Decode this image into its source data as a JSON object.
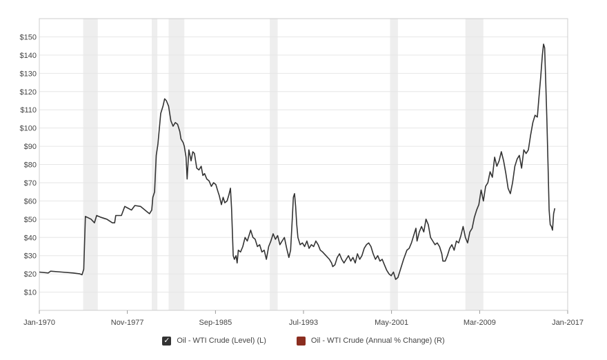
{
  "chart_data": {
    "type": "line",
    "y_ticks": [
      {
        "value": 10,
        "label": "$10"
      },
      {
        "value": 20,
        "label": "$20"
      },
      {
        "value": 30,
        "label": "$30"
      },
      {
        "value": 40,
        "label": "$40"
      },
      {
        "value": 50,
        "label": "$50"
      },
      {
        "value": 60,
        "label": "$60"
      },
      {
        "value": 70,
        "label": "$70"
      },
      {
        "value": 80,
        "label": "$80"
      },
      {
        "value": 90,
        "label": "$90"
      },
      {
        "value": 100,
        "label": "$100"
      },
      {
        "value": 110,
        "label": "$110"
      },
      {
        "value": 120,
        "label": "$120"
      },
      {
        "value": 130,
        "label": "$130"
      },
      {
        "value": 140,
        "label": "$140"
      },
      {
        "value": 150,
        "label": "$150"
      }
    ],
    "x_ticks": [
      {
        "value": 1970.0,
        "label": "Jan-1970"
      },
      {
        "value": 1977.83,
        "label": "Nov-1977"
      },
      {
        "value": 1985.67,
        "label": "Sep-1985"
      },
      {
        "value": 1993.5,
        "label": "Jul-1993"
      },
      {
        "value": 2001.33,
        "label": "May-2001"
      },
      {
        "value": 2009.17,
        "label": "Mar-2009"
      },
      {
        "value": 2017.0,
        "label": "Jan-2017"
      }
    ],
    "xlim": [
      1970.0,
      2017.0
    ],
    "ylim": [
      0,
      160
    ],
    "grid": "horizontal",
    "legend_position": "bottom-center",
    "recessions": [
      [
        1973.9,
        1975.2
      ],
      [
        1980.0,
        1980.5
      ],
      [
        1981.5,
        1982.9
      ],
      [
        1990.5,
        1991.2
      ],
      [
        2001.2,
        2001.9
      ],
      [
        2007.9,
        2009.5
      ]
    ],
    "series": [
      {
        "name": "Oil - WTI Crude (Level) (L)",
        "color": "#333333",
        "visible": true,
        "points": [
          [
            1970.0,
            21
          ],
          [
            1970.8,
            20.5
          ],
          [
            1971.0,
            21.5
          ],
          [
            1972.0,
            21
          ],
          [
            1973.0,
            20.5
          ],
          [
            1973.6,
            20
          ],
          [
            1973.8,
            19.5
          ],
          [
            1973.95,
            22.5
          ],
          [
            1974.1,
            51.5
          ],
          [
            1974.6,
            50
          ],
          [
            1974.9,
            48
          ],
          [
            1975.1,
            52
          ],
          [
            1975.5,
            51
          ],
          [
            1976.0,
            50
          ],
          [
            1976.5,
            48
          ],
          [
            1976.7,
            48
          ],
          [
            1976.8,
            52
          ],
          [
            1977.3,
            52
          ],
          [
            1977.6,
            57
          ],
          [
            1977.9,
            56
          ],
          [
            1978.2,
            55
          ],
          [
            1978.5,
            57.5
          ],
          [
            1979.0,
            57
          ],
          [
            1979.4,
            55
          ],
          [
            1979.7,
            53.5
          ],
          [
            1979.8,
            53
          ],
          [
            1980.0,
            55
          ],
          [
            1980.1,
            62
          ],
          [
            1980.25,
            65
          ],
          [
            1980.4,
            85
          ],
          [
            1980.55,
            91
          ],
          [
            1980.8,
            108
          ],
          [
            1981.0,
            112
          ],
          [
            1981.15,
            116
          ],
          [
            1981.3,
            115
          ],
          [
            1981.5,
            112
          ],
          [
            1981.7,
            104
          ],
          [
            1981.9,
            101
          ],
          [
            1982.1,
            103
          ],
          [
            1982.3,
            102
          ],
          [
            1982.5,
            98
          ],
          [
            1982.6,
            94
          ],
          [
            1982.8,
            92
          ],
          [
            1982.9,
            90
          ],
          [
            1983.05,
            84
          ],
          [
            1983.15,
            72
          ],
          [
            1983.3,
            88
          ],
          [
            1983.4,
            85
          ],
          [
            1983.5,
            82
          ],
          [
            1983.65,
            87
          ],
          [
            1983.8,
            86
          ],
          [
            1984.0,
            78
          ],
          [
            1984.2,
            77
          ],
          [
            1984.4,
            79
          ],
          [
            1984.55,
            74
          ],
          [
            1984.7,
            75
          ],
          [
            1984.9,
            72
          ],
          [
            1985.1,
            71
          ],
          [
            1985.3,
            68
          ],
          [
            1985.5,
            70
          ],
          [
            1985.7,
            69
          ],
          [
            1985.9,
            65
          ],
          [
            1986.0,
            63
          ],
          [
            1986.2,
            58
          ],
          [
            1986.35,
            62
          ],
          [
            1986.5,
            59
          ],
          [
            1986.7,
            60
          ],
          [
            1986.85,
            63
          ],
          [
            1987.0,
            67
          ],
          [
            1987.1,
            56
          ],
          [
            1987.25,
            30
          ],
          [
            1987.35,
            28
          ],
          [
            1987.5,
            30
          ],
          [
            1987.6,
            26
          ],
          [
            1987.7,
            33
          ],
          [
            1987.9,
            32
          ],
          [
            1988.1,
            35
          ],
          [
            1988.3,
            40
          ],
          [
            1988.5,
            38
          ],
          [
            1988.7,
            42
          ],
          [
            1988.8,
            44
          ],
          [
            1989.0,
            40
          ],
          [
            1989.2,
            39
          ],
          [
            1989.4,
            35
          ],
          [
            1989.6,
            36
          ],
          [
            1989.8,
            32
          ],
          [
            1990.0,
            33
          ],
          [
            1990.2,
            28
          ],
          [
            1990.4,
            35
          ],
          [
            1990.6,
            38
          ],
          [
            1990.8,
            42
          ],
          [
            1991.0,
            39
          ],
          [
            1991.2,
            41
          ],
          [
            1991.4,
            36
          ],
          [
            1991.6,
            38
          ],
          [
            1991.8,
            40
          ],
          [
            1992.0,
            34
          ],
          [
            1992.2,
            29
          ],
          [
            1992.35,
            33
          ],
          [
            1992.5,
            50
          ],
          [
            1992.6,
            62
          ],
          [
            1992.7,
            64
          ],
          [
            1992.8,
            57
          ],
          [
            1992.9,
            47
          ],
          [
            1993.0,
            40
          ],
          [
            1993.2,
            36
          ],
          [
            1993.4,
            37
          ],
          [
            1993.6,
            35
          ],
          [
            1993.8,
            38
          ],
          [
            1994.0,
            34
          ],
          [
            1994.2,
            36
          ],
          [
            1994.4,
            35
          ],
          [
            1994.6,
            38
          ],
          [
            1994.8,
            36
          ],
          [
            1995.0,
            33
          ],
          [
            1995.2,
            32
          ],
          [
            1995.5,
            30
          ],
          [
            1995.8,
            28
          ],
          [
            1996.0,
            26
          ],
          [
            1996.1,
            24
          ],
          [
            1996.3,
            25
          ],
          [
            1996.5,
            29
          ],
          [
            1996.7,
            31
          ],
          [
            1996.9,
            28
          ],
          [
            1997.1,
            26
          ],
          [
            1997.3,
            28
          ],
          [
            1997.5,
            30
          ],
          [
            1997.7,
            27
          ],
          [
            1997.9,
            29
          ],
          [
            1998.1,
            26
          ],
          [
            1998.3,
            31
          ],
          [
            1998.5,
            28
          ],
          [
            1998.7,
            30
          ],
          [
            1998.9,
            34
          ],
          [
            1999.1,
            36
          ],
          [
            1999.3,
            37
          ],
          [
            1999.5,
            35
          ],
          [
            1999.7,
            31
          ],
          [
            1999.9,
            28
          ],
          [
            2000.1,
            30
          ],
          [
            2000.3,
            27
          ],
          [
            2000.5,
            28
          ],
          [
            2000.7,
            25
          ],
          [
            2000.9,
            22
          ],
          [
            2001.1,
            20
          ],
          [
            2001.3,
            19
          ],
          [
            2001.5,
            21
          ],
          [
            2001.7,
            17
          ],
          [
            2001.9,
            18
          ],
          [
            2002.1,
            22
          ],
          [
            2002.4,
            28
          ],
          [
            2002.7,
            33
          ],
          [
            2002.9,
            34
          ],
          [
            2003.1,
            37
          ],
          [
            2003.3,
            41
          ],
          [
            2003.5,
            45
          ],
          [
            2003.6,
            38
          ],
          [
            2003.8,
            43
          ],
          [
            2004.0,
            46
          ],
          [
            2004.2,
            43
          ],
          [
            2004.4,
            50
          ],
          [
            2004.6,
            47
          ],
          [
            2004.8,
            40
          ],
          [
            2005.0,
            38
          ],
          [
            2005.2,
            36
          ],
          [
            2005.4,
            37
          ],
          [
            2005.6,
            35
          ],
          [
            2005.8,
            31
          ],
          [
            2005.9,
            27
          ],
          [
            2006.1,
            27
          ],
          [
            2006.3,
            30
          ],
          [
            2006.5,
            34
          ],
          [
            2006.7,
            36
          ],
          [
            2006.9,
            33
          ],
          [
            2007.1,
            38
          ],
          [
            2007.3,
            37
          ],
          [
            2007.5,
            41
          ],
          [
            2007.7,
            46
          ],
          [
            2007.9,
            40
          ],
          [
            2008.1,
            37
          ],
          [
            2008.3,
            43
          ],
          [
            2008.5,
            45
          ],
          [
            2008.7,
            51
          ],
          [
            2008.9,
            55
          ],
          [
            2009.1,
            58
          ],
          [
            2009.3,
            66
          ],
          [
            2009.5,
            60
          ],
          [
            2009.7,
            68
          ],
          [
            2009.9,
            70
          ],
          [
            2010.1,
            76
          ],
          [
            2010.3,
            73
          ],
          [
            2010.5,
            84
          ],
          [
            2010.7,
            79
          ],
          [
            2010.9,
            82
          ],
          [
            2011.1,
            87
          ],
          [
            2011.3,
            82
          ],
          [
            2011.5,
            75
          ],
          [
            2011.7,
            67
          ],
          [
            2011.9,
            64
          ],
          [
            2012.1,
            70
          ],
          [
            2012.3,
            79
          ],
          [
            2012.5,
            83
          ],
          [
            2012.7,
            85
          ],
          [
            2012.9,
            78
          ],
          [
            2013.1,
            88
          ],
          [
            2013.3,
            86
          ],
          [
            2013.5,
            88
          ],
          [
            2013.7,
            96
          ],
          [
            2013.9,
            103
          ],
          [
            2014.1,
            107
          ],
          [
            2014.3,
            106
          ],
          [
            2014.45,
            117
          ],
          [
            2014.6,
            128
          ],
          [
            2014.75,
            140
          ],
          [
            2014.85,
            146
          ],
          [
            2014.95,
            144
          ],
          [
            2015.05,
            125
          ],
          [
            2015.15,
            105
          ],
          [
            2015.25,
            80
          ],
          [
            2015.35,
            55
          ],
          [
            2015.45,
            47
          ],
          [
            2015.55,
            46
          ],
          [
            2015.65,
            44
          ],
          [
            2015.75,
            53
          ],
          [
            2015.85,
            56
          ]
        ]
      },
      {
        "name": "Oil - WTI Crude (Annual % Change) (R)",
        "color": "#7b2a1c",
        "visible": false
      }
    ]
  },
  "legend": {
    "items": [
      {
        "label": "Oil - WTI Crude (Level) (L)",
        "color": "#333333",
        "checked": true
      },
      {
        "label": "Oil - WTI Crude (Annual % Change) (R)",
        "color": "#8b2e20",
        "checked": false
      }
    ]
  }
}
